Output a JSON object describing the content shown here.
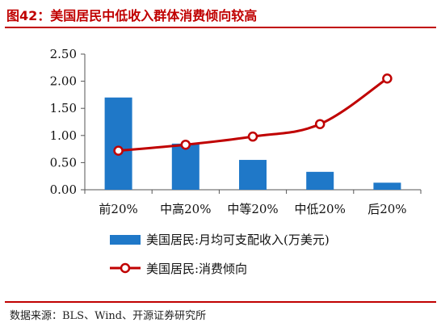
{
  "title": "图42：美国居民中低收入群体消费倾向较高",
  "source": "数据来源：BLS、Wind、开源证券研究所",
  "colors": {
    "bar": "#1f78c8",
    "line": "#c00000",
    "rule": "#c00000"
  },
  "chart_data": {
    "type": "bar",
    "categories": [
      "前20%",
      "中高20%",
      "中等20%",
      "中低20%",
      "后20%"
    ],
    "series": [
      {
        "name": "美国居民:月均可支配收入(万美元)",
        "type": "bar",
        "values": [
          1.7,
          0.85,
          0.55,
          0.33,
          0.13
        ]
      },
      {
        "name": "美国居民:消费倾向",
        "type": "line",
        "values": [
          0.72,
          0.83,
          0.98,
          1.21,
          2.05
        ]
      }
    ],
    "yticks": [
      "0.00",
      "0.50",
      "1.00",
      "1.50",
      "2.00",
      "2.50"
    ],
    "ylim": [
      0,
      2.5
    ],
    "legend_position": "bottom",
    "grid": false
  }
}
